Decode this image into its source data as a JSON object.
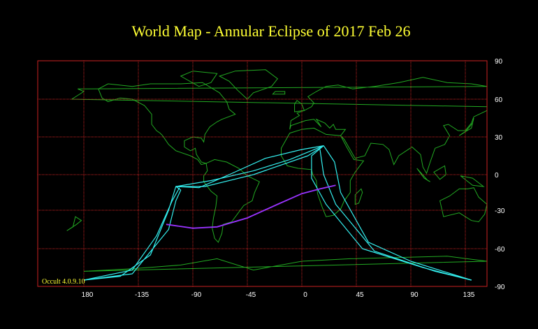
{
  "title": "World Map  -  Annular Eclipse  of  2017 Feb 26",
  "credit": "Occult 4.0.9.10",
  "colors": {
    "background": "#000000",
    "title": "#ffff33",
    "grid": "#cc2222",
    "coastline": "#22aa22",
    "eclipse_limits": "#33eeee",
    "central_line": "#9933ff",
    "tick_labels": "#ffffff"
  },
  "map": {
    "projection": "equirectangular (latitude stretched toward poles)",
    "x_ticks": [
      "180",
      "-135",
      "-90",
      "-45",
      "0",
      "45",
      "90",
      "135"
    ],
    "y_ticks": [
      "90",
      "60",
      "30",
      "0",
      "-30",
      "-60",
      "-90"
    ],
    "grid": true,
    "central_line": [
      [
        -112,
        -41
      ],
      [
        -90,
        -44
      ],
      [
        -70,
        -43
      ],
      [
        -45,
        -36
      ],
      [
        -20,
        -25
      ],
      [
        0,
        -16
      ],
      [
        15,
        -12
      ],
      [
        28,
        -9
      ]
    ],
    "limit_lines": [
      [
        [
          -180,
          -85
        ],
        [
          -150,
          -82
        ],
        [
          -125,
          -65
        ],
        [
          -110,
          -30
        ],
        [
          -104,
          -10
        ],
        [
          -100,
          -13
        ],
        [
          -104,
          -22
        ],
        [
          -110,
          -45
        ],
        [
          -140,
          -80
        ],
        [
          -180,
          -85
        ]
      ],
      [
        [
          -180,
          -85
        ],
        [
          -140,
          -77
        ],
        [
          -120,
          -50
        ],
        [
          -107,
          -22
        ],
        [
          -101,
          -11
        ]
      ],
      [
        [
          -104,
          -10
        ],
        [
          -85,
          -11
        ],
        [
          -60,
          0
        ],
        [
          -30,
          13
        ],
        [
          0,
          20
        ],
        [
          18,
          23
        ]
      ],
      [
        [
          -104,
          -10
        ],
        [
          -75,
          -5
        ],
        [
          -40,
          3
        ],
        [
          -10,
          12
        ],
        [
          18,
          23
        ]
      ],
      [
        [
          18,
          23
        ],
        [
          5,
          15
        ],
        [
          -40,
          0
        ],
        [
          -80,
          -10
        ],
        [
          -104,
          -10
        ]
      ],
      [
        [
          18,
          23
        ],
        [
          27,
          10
        ],
        [
          32,
          -15
        ],
        [
          55,
          -55
        ],
        [
          90,
          -70
        ],
        [
          140,
          -85
        ]
      ],
      [
        [
          18,
          23
        ],
        [
          8,
          15
        ],
        [
          8,
          -3
        ],
        [
          20,
          -25
        ],
        [
          50,
          -60
        ],
        [
          100,
          -75
        ],
        [
          140,
          -85
        ]
      ],
      [
        [
          15,
          20
        ],
        [
          18,
          0
        ],
        [
          28,
          -25
        ],
        [
          60,
          -62
        ],
        [
          110,
          -78
        ],
        [
          140,
          -85
        ]
      ]
    ],
    "continents": [
      [
        [
          -168,
          68
        ],
        [
          -160,
          72
        ],
        [
          -140,
          70
        ],
        [
          -125,
          72
        ],
        [
          -100,
          72
        ],
        [
          -82,
          73
        ],
        [
          -68,
          65
        ],
        [
          -62,
          58
        ],
        [
          -60,
          52
        ],
        [
          -55,
          48
        ],
        [
          -66,
          44
        ],
        [
          -70,
          42
        ],
        [
          -76,
          38
        ],
        [
          -80,
          32
        ],
        [
          -81,
          26
        ],
        [
          -83,
          29
        ],
        [
          -90,
          30
        ],
        [
          -97,
          27
        ],
        [
          -97,
          22
        ],
        [
          -92,
          19
        ],
        [
          -88,
          21
        ],
        [
          -87,
          16
        ],
        [
          -83,
          10
        ],
        [
          -79,
          9
        ],
        [
          -83,
          8
        ],
        [
          -86,
          12
        ],
        [
          -92,
          15
        ],
        [
          -104,
          19
        ],
        [
          -110,
          24
        ],
        [
          -115,
          31
        ],
        [
          -117,
          33
        ],
        [
          -120,
          35
        ],
        [
          -124,
          40
        ],
        [
          -124,
          48
        ],
        [
          -130,
          55
        ],
        [
          -140,
          60
        ],
        [
          -150,
          61
        ],
        [
          -160,
          58
        ],
        [
          -165,
          61
        ],
        [
          -168,
          68
        ]
      ],
      [
        [
          -79,
          9
        ],
        [
          -72,
          12
        ],
        [
          -62,
          10
        ],
        [
          -52,
          5
        ],
        [
          -45,
          -1
        ],
        [
          -35,
          -6
        ],
        [
          -39,
          -15
        ],
        [
          -41,
          -22
        ],
        [
          -48,
          -26
        ],
        [
          -54,
          -34
        ],
        [
          -58,
          -39
        ],
        [
          -65,
          -41
        ],
        [
          -66,
          -48
        ],
        [
          -69,
          -55
        ],
        [
          -72,
          -52
        ],
        [
          -74,
          -44
        ],
        [
          -73,
          -36
        ],
        [
          -71,
          -27
        ],
        [
          -70,
          -18
        ],
        [
          -75,
          -14
        ],
        [
          -81,
          -6
        ],
        [
          -81,
          -1
        ],
        [
          -78,
          3
        ],
        [
          -79,
          9
        ]
      ],
      [
        [
          -45,
          60
        ],
        [
          -40,
          65
        ],
        [
          -25,
          70
        ],
        [
          -20,
          76
        ],
        [
          -30,
          83
        ],
        [
          -55,
          82
        ],
        [
          -68,
          78
        ],
        [
          -60,
          74
        ],
        [
          -53,
          67
        ],
        [
          -45,
          60
        ]
      ],
      [
        [
          -10,
          36
        ],
        [
          -9,
          43
        ],
        [
          -2,
          47
        ],
        [
          -4,
          49
        ],
        [
          2,
          51
        ],
        [
          8,
          54
        ],
        [
          10,
          57
        ],
        [
          5,
          62
        ],
        [
          12,
          66
        ],
        [
          20,
          70
        ],
        [
          30,
          71
        ],
        [
          42,
          68
        ],
        [
          60,
          70
        ],
        [
          80,
          73
        ],
        [
          100,
          77
        ],
        [
          120,
          73
        ],
        [
          140,
          72
        ],
        [
          160,
          70
        ],
        [
          175,
          68
        ],
        [
          180,
          66
        ],
        [
          170,
          60
        ],
        [
          160,
          54
        ],
        [
          156,
          51
        ],
        [
          142,
          46
        ],
        [
          140,
          41
        ],
        [
          135,
          35
        ],
        [
          129,
          35
        ],
        [
          121,
          40
        ],
        [
          117,
          39
        ],
        [
          122,
          31
        ],
        [
          118,
          24
        ],
        [
          110,
          21
        ],
        [
          106,
          10
        ],
        [
          103,
          1
        ],
        [
          100,
          6
        ],
        [
          98,
          16
        ],
        [
          91,
          22
        ],
        [
          80,
          15
        ],
        [
          76,
          8
        ],
        [
          72,
          20
        ],
        [
          67,
          24
        ],
        [
          57,
          25
        ],
        [
          52,
          15
        ],
        [
          44,
          13
        ],
        [
          35,
          28
        ],
        [
          32,
          31
        ],
        [
          36,
          36
        ],
        [
          28,
          36
        ],
        [
          26,
          40
        ],
        [
          23,
          37
        ],
        [
          19,
          41
        ],
        [
          12,
          44
        ],
        [
          16,
          38
        ],
        [
          10,
          44
        ],
        [
          3,
          43
        ],
        [
          -9,
          39
        ],
        [
          -10,
          36
        ]
      ],
      [
        [
          -17,
          21
        ],
        [
          -17,
          15
        ],
        [
          -12,
          7
        ],
        [
          -3,
          5
        ],
        [
          8,
          4
        ],
        [
          9,
          0
        ],
        [
          12,
          -5
        ],
        [
          13,
          -16
        ],
        [
          17,
          -28
        ],
        [
          20,
          -35
        ],
        [
          26,
          -34
        ],
        [
          32,
          -29
        ],
        [
          35,
          -22
        ],
        [
          40,
          -15
        ],
        [
          40,
          -5
        ],
        [
          44,
          2
        ],
        [
          51,
          11
        ],
        [
          43,
          12
        ],
        [
          37,
          22
        ],
        [
          32,
          31
        ],
        [
          20,
          32
        ],
        [
          10,
          37
        ],
        [
          0,
          36
        ],
        [
          -10,
          33
        ],
        [
          -17,
          21
        ]
      ],
      [
        [
          114,
          -22
        ],
        [
          122,
          -18
        ],
        [
          130,
          -12
        ],
        [
          137,
          -12
        ],
        [
          142,
          -11
        ],
        [
          146,
          -19
        ],
        [
          153,
          -25
        ],
        [
          151,
          -33
        ],
        [
          146,
          -39
        ],
        [
          140,
          -38
        ],
        [
          130,
          -32
        ],
        [
          117,
          -35
        ],
        [
          114,
          -22
        ]
      ],
      [
        [
          -180,
          -78
        ],
        [
          -140,
          -76
        ],
        [
          -100,
          -73
        ],
        [
          -70,
          -68
        ],
        [
          -40,
          -77
        ],
        [
          0,
          -70
        ],
        [
          40,
          -68
        ],
        [
          80,
          -67
        ],
        [
          120,
          -66
        ],
        [
          160,
          -70
        ],
        [
          180,
          -78
        ]
      ],
      [
        [
          44,
          -25
        ],
        [
          47,
          -24
        ],
        [
          50,
          -15
        ],
        [
          49,
          -12
        ],
        [
          44,
          -17
        ],
        [
          44,
          -25
        ]
      ],
      [
        [
          166,
          -46
        ],
        [
          174,
          -41
        ],
        [
          178,
          -38
        ],
        [
          173,
          -35
        ],
        [
          171,
          -43
        ],
        [
          166,
          -46
        ]
      ],
      [
        [
          95,
          5
        ],
        [
          104,
          -5
        ],
        [
          106,
          -6
        ],
        [
          101,
          -3
        ],
        [
          95,
          5
        ]
      ],
      [
        [
          109,
          2
        ],
        [
          118,
          7
        ],
        [
          119,
          0
        ],
        [
          114,
          -4
        ],
        [
          109,
          2
        ]
      ],
      [
        [
          131,
          -1
        ],
        [
          141,
          -3
        ],
        [
          150,
          -10
        ],
        [
          141,
          -9
        ],
        [
          131,
          -1
        ]
      ],
      [
        [
          130,
          31
        ],
        [
          135,
          34
        ],
        [
          141,
          41
        ],
        [
          142,
          45
        ],
        [
          140,
          37
        ],
        [
          133,
          33
        ],
        [
          130,
          31
        ]
      ],
      [
        [
          -6,
          50
        ],
        [
          2,
          51
        ],
        [
          0,
          56
        ],
        [
          -4,
          59
        ],
        [
          -6,
          56
        ],
        [
          -6,
          50
        ]
      ],
      [
        [
          -24,
          64
        ],
        [
          -14,
          64
        ],
        [
          -14,
          66
        ],
        [
          -22,
          66
        ],
        [
          -24,
          64
        ]
      ],
      [
        [
          -85,
          70
        ],
        [
          -75,
          73
        ],
        [
          -70,
          80
        ],
        [
          -90,
          82
        ],
        [
          -100,
          78
        ],
        [
          -85,
          70
        ]
      ]
    ]
  }
}
